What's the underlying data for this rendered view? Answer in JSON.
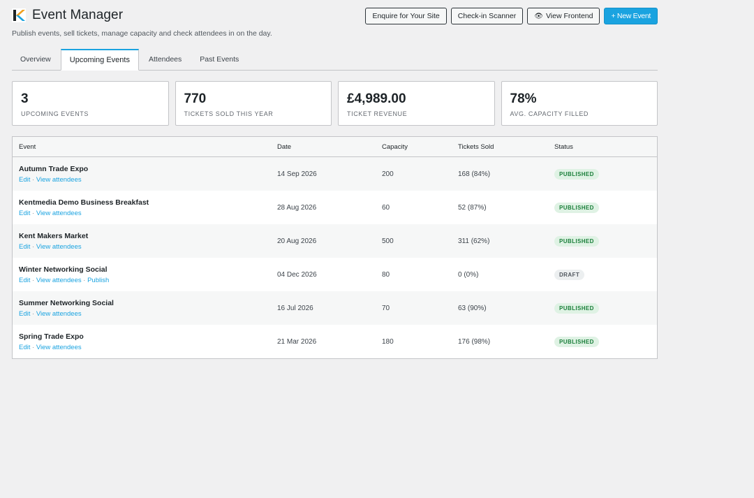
{
  "header": {
    "title": "Event Manager",
    "subtitle": "Publish events, sell tickets, manage capacity and check attendees in on the day.",
    "buttons": {
      "enquire": "Enquire for Your Site",
      "checkin": "Check-in Scanner",
      "view_frontend": "View Frontend",
      "new_event": "+ New Event"
    }
  },
  "tabs": [
    "Overview",
    "Upcoming Events",
    "Attendees",
    "Past Events"
  ],
  "stats": [
    {
      "value": "3",
      "label": "Upcoming Events"
    },
    {
      "value": "770",
      "label": "Tickets Sold This Year"
    },
    {
      "value": "£4,989.00",
      "label": "Ticket Revenue"
    },
    {
      "value": "78%",
      "label": "Avg. Capacity Filled"
    }
  ],
  "table": {
    "columns": [
      "Event",
      "Date",
      "Capacity",
      "Tickets Sold",
      "Status"
    ],
    "rows": [
      {
        "name": "Autumn Trade Expo",
        "links": [
          "Edit",
          "View attendees"
        ],
        "date": "14 Sep 2026",
        "capacity": "200",
        "sold": "168 (84%)",
        "status": "PUBLISHED"
      },
      {
        "name": "Kentmedia Demo Business Breakfast",
        "links": [
          "Edit",
          "View attendees"
        ],
        "date": "28 Aug 2026",
        "capacity": "60",
        "sold": "52 (87%)",
        "status": "PUBLISHED"
      },
      {
        "name": "Kent Makers Market",
        "links": [
          "Edit",
          "View attendees"
        ],
        "date": "20 Aug 2026",
        "capacity": "500",
        "sold": "311 (62%)",
        "status": "PUBLISHED"
      },
      {
        "name": "Winter Networking Social",
        "links": [
          "Edit",
          "View attendees",
          "Publish"
        ],
        "date": "04 Dec 2026",
        "capacity": "80",
        "sold": "0 (0%)",
        "status": "DRAFT"
      },
      {
        "name": "Summer Networking Social",
        "links": [
          "Edit",
          "View attendees"
        ],
        "date": "16 Jul 2026",
        "capacity": "70",
        "sold": "63 (90%)",
        "status": "PUBLISHED"
      },
      {
        "name": "Spring Trade Expo",
        "links": [
          "Edit",
          "View attendees"
        ],
        "date": "21 Mar 2026",
        "capacity": "180",
        "sold": "176 (98%)",
        "status": "PUBLISHED"
      }
    ]
  },
  "colors": {
    "accent": "#1aa3e0",
    "published": "#1a7f3a",
    "draft": "#50575e"
  }
}
